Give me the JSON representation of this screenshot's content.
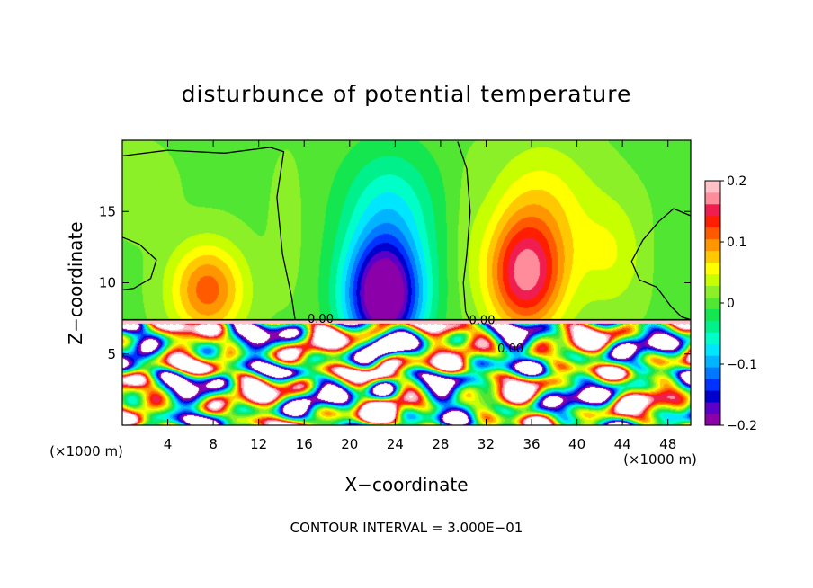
{
  "chart_data": {
    "type": "heatmap",
    "title": "disturbunce of potential temperature",
    "xlabel": "X−coordinate",
    "ylabel": "Z−coordinate",
    "x_unit_left": "(×1000 m)",
    "x_unit_right": "(×1000 m)",
    "xlim": [
      0,
      50
    ],
    "ylim": [
      0,
      20
    ],
    "x_ticks": [
      {
        "value": 4,
        "label": "4"
      },
      {
        "value": 8,
        "label": "8"
      },
      {
        "value": 12,
        "label": "12"
      },
      {
        "value": 16,
        "label": "16"
      },
      {
        "value": 20,
        "label": "20"
      },
      {
        "value": 24,
        "label": "24"
      },
      {
        "value": 28,
        "label": "28"
      },
      {
        "value": 32,
        "label": "32"
      },
      {
        "value": 36,
        "label": "36"
      },
      {
        "value": 40,
        "label": "40"
      },
      {
        "value": 44,
        "label": "44"
      },
      {
        "value": 48,
        "label": "48"
      }
    ],
    "y_ticks": [
      {
        "value": 5,
        "label": "5"
      },
      {
        "value": 10,
        "label": "10"
      },
      {
        "value": 15,
        "label": "15"
      }
    ],
    "colorbar": {
      "min": -0.2,
      "max": 0.2,
      "ticks": [
        {
          "value": 0.2,
          "label": "0.2"
        },
        {
          "value": 0.1,
          "label": "0.1"
        },
        {
          "value": 0,
          "label": "0"
        },
        {
          "value": -0.1,
          "label": "−0.1"
        },
        {
          "value": -0.2,
          "label": "−0.2"
        }
      ],
      "colors": [
        "#8b00a8",
        "#5a00c8",
        "#0000cd",
        "#0032ff",
        "#0078ff",
        "#00b4ff",
        "#00e6ff",
        "#00ffc8",
        "#00f08c",
        "#14e650",
        "#50e632",
        "#8cf028",
        "#c8ff00",
        "#ffff00",
        "#ffc800",
        "#ff9600",
        "#ff5a00",
        "#ff1e00",
        "#f01e50",
        "#ff8c9a",
        "#ffc0c8"
      ]
    },
    "contour_labels": [
      {
        "x": 16.3,
        "y": 7.2,
        "label": "0.00"
      },
      {
        "x": 30.5,
        "y": 7.1,
        "label": "0.00"
      },
      {
        "x": 33.0,
        "y": 5.1,
        "label": "0.00"
      }
    ],
    "zero_contour_lines": [
      [
        [
          0,
          18.9
        ],
        [
          4,
          19.3
        ],
        [
          9,
          19.1
        ],
        [
          13,
          19.5
        ],
        [
          14.2,
          19.2
        ],
        [
          13.6,
          16
        ],
        [
          14.1,
          12
        ],
        [
          14.9,
          9
        ],
        [
          15.2,
          7.4
        ]
      ],
      [
        [
          29.5,
          19.9
        ],
        [
          30.3,
          18
        ],
        [
          30.6,
          15
        ],
        [
          30.3,
          12
        ],
        [
          30.0,
          10
        ],
        [
          30.2,
          8
        ],
        [
          30.5,
          7.4
        ]
      ],
      [
        [
          0,
          13.2
        ],
        [
          1.5,
          12.7
        ],
        [
          3,
          11.6
        ],
        [
          2.5,
          10.3
        ],
        [
          1.0,
          9.6
        ],
        [
          0,
          9.5
        ]
      ],
      [
        [
          50,
          14.7
        ],
        [
          48.5,
          15.2
        ],
        [
          47.2,
          14.3
        ],
        [
          45.8,
          13.0
        ],
        [
          44.8,
          11.5
        ],
        [
          45.5,
          10.2
        ],
        [
          47,
          9.7
        ],
        [
          48.3,
          8.3
        ],
        [
          49.2,
          7.6
        ],
        [
          50,
          7.4
        ]
      ]
    ],
    "field_components": [
      {
        "x": 7.5,
        "z": 9.5,
        "amp": 0.11,
        "sx": 3.2,
        "sz": 3.2
      },
      {
        "x": 1.5,
        "z": 16.5,
        "amp": 0.02,
        "sx": 3,
        "sz": 3
      },
      {
        "x": 23,
        "z": 9.0,
        "amp": -0.23,
        "sx": 3.4,
        "sz": 4.0
      },
      {
        "x": 23.5,
        "z": 15.0,
        "amp": -0.07,
        "sx": 4.2,
        "sz": 4.5
      },
      {
        "x": 35.5,
        "z": 10.5,
        "amp": 0.16,
        "sx": 3.4,
        "sz": 4.0
      },
      {
        "x": 37,
        "z": 15.5,
        "amp": 0.05,
        "sx": 4.5,
        "sz": 4.5
      },
      {
        "x": 43,
        "z": 12,
        "amp": 0.04,
        "sx": 3,
        "sz": 4
      },
      {
        "x": 49,
        "z": 12,
        "amp": -0.015,
        "sx": 2,
        "sz": 3
      },
      {
        "x": 14.5,
        "z": 14,
        "amp": 0.015,
        "sx": 1.5,
        "sz": 5
      },
      {
        "x": 30.3,
        "z": 14,
        "amp": 0.01,
        "sx": 1.5,
        "sz": 5
      }
    ],
    "boundary_layer_top": 7.4
  }
}
